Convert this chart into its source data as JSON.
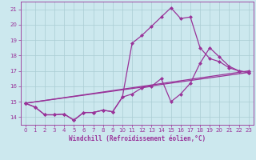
{
  "xlabel": "Windchill (Refroidissement éolien,°C)",
  "bg_color": "#cce8ee",
  "line_color": "#993399",
  "grid_color": "#aaccd4",
  "xlim": [
    -0.5,
    23.5
  ],
  "ylim": [
    13.5,
    21.5
  ],
  "yticks": [
    14,
    15,
    16,
    17,
    18,
    19,
    20,
    21
  ],
  "xticks": [
    0,
    1,
    2,
    3,
    4,
    5,
    6,
    7,
    8,
    9,
    10,
    11,
    12,
    13,
    14,
    15,
    16,
    17,
    18,
    19,
    20,
    21,
    22,
    23
  ],
  "curve1_x": [
    0,
    1,
    2,
    3,
    4,
    5,
    6,
    7,
    8,
    9,
    10,
    11,
    12,
    13,
    14,
    15,
    16,
    17,
    18,
    19,
    20,
    21,
    22,
    23
  ],
  "curve1_y": [
    14.9,
    14.65,
    14.15,
    14.15,
    14.2,
    13.8,
    14.3,
    14.3,
    14.45,
    14.35,
    15.3,
    18.8,
    19.3,
    19.9,
    20.5,
    21.1,
    20.4,
    20.5,
    18.5,
    17.8,
    17.6,
    17.2,
    17.0,
    16.9
  ],
  "curve2_x": [
    0,
    1,
    2,
    3,
    4,
    5,
    6,
    7,
    8,
    9,
    10,
    11,
    12,
    13,
    14,
    15,
    16,
    17,
    18,
    19,
    20,
    21,
    22,
    23
  ],
  "curve2_y": [
    14.9,
    14.65,
    14.15,
    14.15,
    14.2,
    13.8,
    14.3,
    14.3,
    14.45,
    14.35,
    15.3,
    15.5,
    15.9,
    16.0,
    16.5,
    15.0,
    15.5,
    16.2,
    17.5,
    18.5,
    17.9,
    17.3,
    17.0,
    16.9
  ],
  "line3_x": [
    0,
    23
  ],
  "line3_y": [
    14.9,
    16.9
  ],
  "line4_x": [
    0,
    23
  ],
  "line4_y": [
    14.9,
    16.9
  ]
}
